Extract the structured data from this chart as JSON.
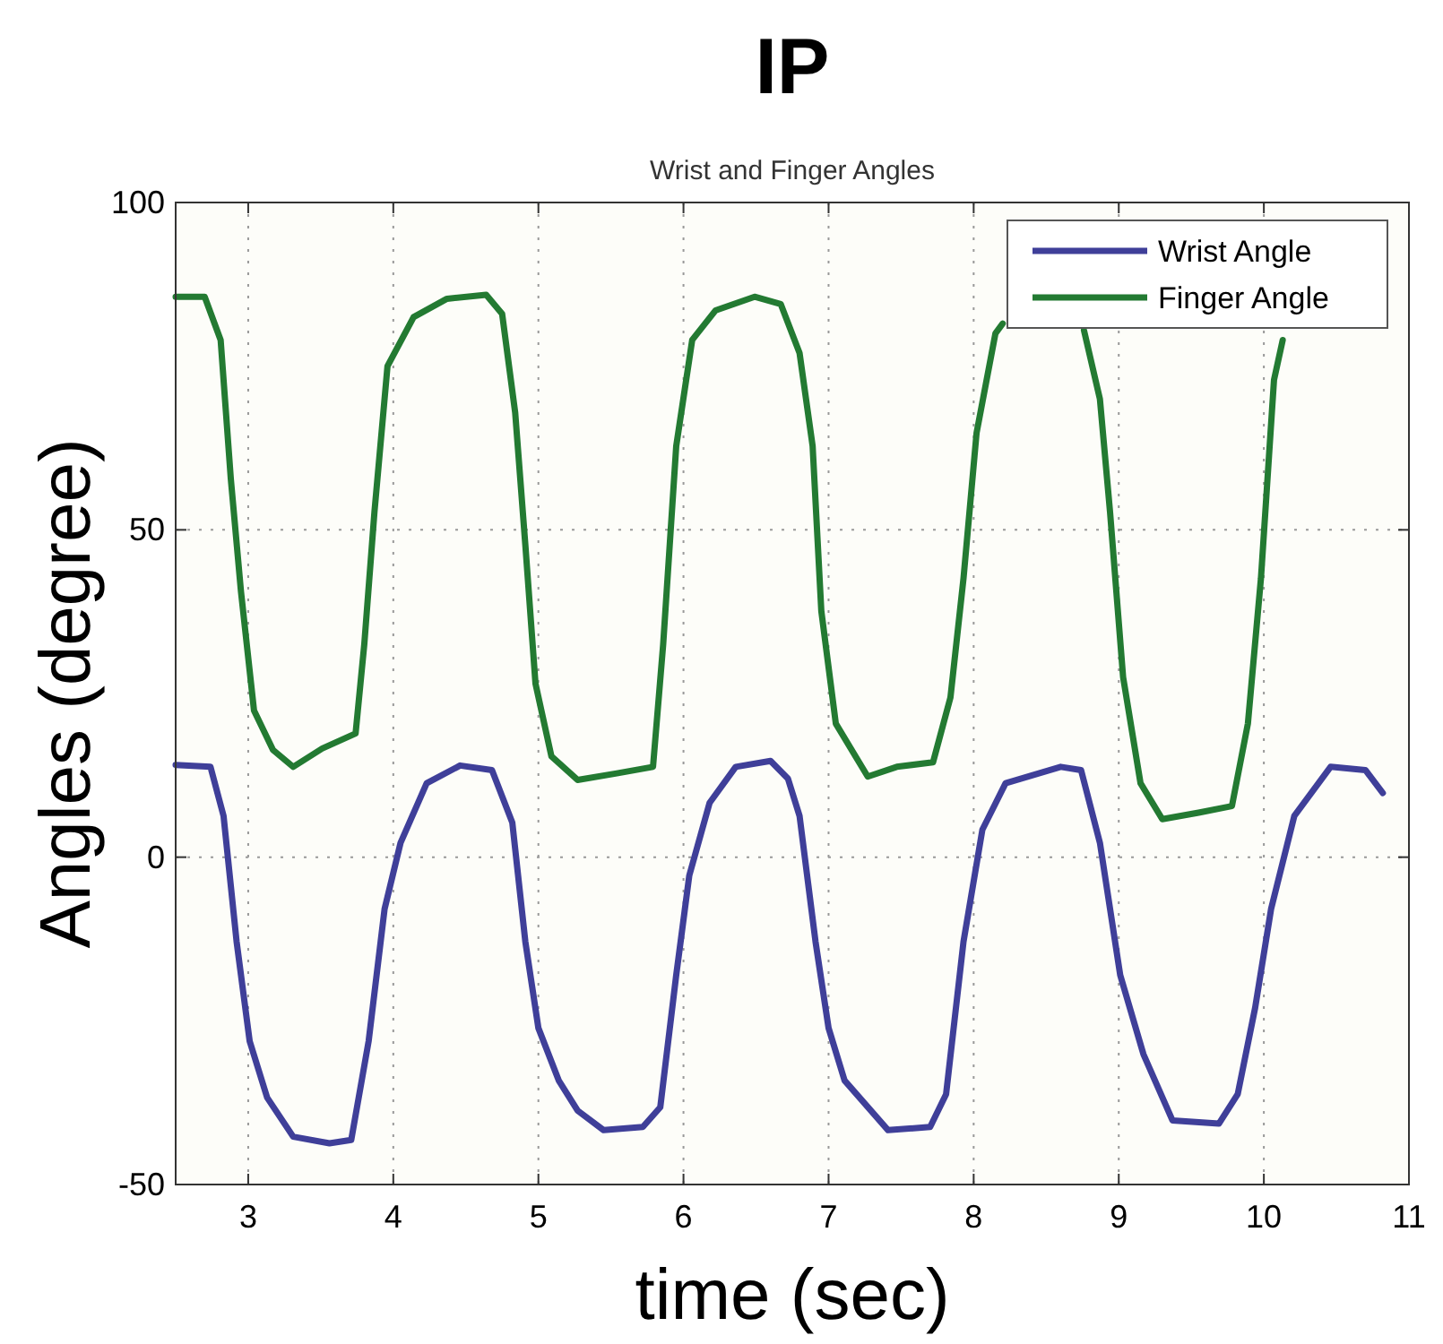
{
  "chart_data": {
    "type": "line",
    "title": "IP",
    "subtitle": "Wrist and Finger Angles",
    "xlabel": "time (sec)",
    "ylabel": "Angles (degree)",
    "xlim": [
      2.5,
      11
    ],
    "xticks": [
      3,
      4,
      5,
      6,
      7,
      8,
      9,
      10,
      11
    ],
    "ylim": [
      -50,
      100
    ],
    "yticks": [
      -50,
      0,
      50,
      100
    ],
    "grid": true,
    "legend": "top right",
    "line_style": "solid",
    "marker": "none",
    "series": [
      {
        "name": "Wrist Angle",
        "color": "#3f3f99",
        "x": [
          2.5,
          2.74,
          2.83,
          2.92,
          3.01,
          3.13,
          3.31,
          3.56,
          3.71,
          3.83,
          3.94,
          4.05,
          4.23,
          4.46,
          4.68,
          4.82,
          4.91,
          5.0,
          5.14,
          5.27,
          5.45,
          5.72,
          5.84,
          5.95,
          6.04,
          6.18,
          6.36,
          6.6,
          6.72,
          6.8,
          6.91,
          7.0,
          7.11,
          7.41,
          7.7,
          7.81,
          7.93,
          8.06,
          8.22,
          8.6,
          8.74,
          8.87,
          9.01,
          9.17,
          9.37,
          9.69,
          9.82,
          9.94,
          10.05,
          10.21,
          10.46,
          10.7,
          10.82
        ],
        "values": [
          14.1,
          13.8,
          6.3,
          -12.9,
          -28.1,
          -36.7,
          -42.7,
          -43.7,
          -43.2,
          -28.1,
          -7.9,
          2.2,
          11.3,
          14,
          13.3,
          5.3,
          -12.9,
          -26.1,
          -34.1,
          -38.7,
          -41.7,
          -41.2,
          -38.2,
          -18,
          -2.8,
          8.3,
          13.8,
          14.7,
          12,
          6.3,
          -12.9,
          -26.1,
          -34.1,
          -41.7,
          -41.2,
          -36.2,
          -12.9,
          4.2,
          11.3,
          13.8,
          13.3,
          2.2,
          -18,
          -30.1,
          -40.2,
          -40.7,
          -36.2,
          -23,
          -7.9,
          6.3,
          13.8,
          13.3,
          9.8
        ]
      },
      {
        "name": "Finger Angle",
        "color": "#237a32",
        "x": [
          2.5,
          2.7,
          2.81,
          2.88,
          2.95,
          3.04,
          3.17,
          3.31,
          3.51,
          3.74,
          3.8,
          3.87,
          3.96,
          4.14,
          4.37,
          4.64,
          4.75,
          4.84,
          4.91,
          4.98,
          5.09,
          5.27,
          5.54,
          5.79,
          5.86,
          5.95,
          6.06,
          6.22,
          6.49,
          6.67,
          6.8,
          6.89,
          6.95,
          7.05,
          7.27,
          7.47,
          7.72,
          7.84,
          7.93,
          8.02,
          8.15,
          8.2,
          8.5,
          8.76,
          8.87,
          8.94,
          9.03,
          9.15,
          9.3,
          9.55,
          9.78,
          9.89,
          9.98,
          10.07,
          10.13
        ],
        "values": [
          85.6,
          85.6,
          79,
          57.8,
          40.6,
          22.4,
          16.4,
          13.8,
          16.6,
          18.9,
          32.5,
          52.7,
          75,
          82.5,
          85.3,
          85.9,
          83,
          67.9,
          47.7,
          26.5,
          15.4,
          11.8,
          12.8,
          13.8,
          32.5,
          62.8,
          79,
          83.5,
          85.6,
          84.5,
          77,
          62.8,
          37.6,
          20.4,
          12.3,
          13.8,
          14.5,
          24.4,
          42.6,
          64.8,
          80,
          81.5,
          null,
          80.5,
          70,
          52.7,
          27.5,
          11.3,
          5.8,
          6.8,
          7.8,
          20.4,
          42.6,
          72.9,
          79
        ]
      }
    ]
  }
}
